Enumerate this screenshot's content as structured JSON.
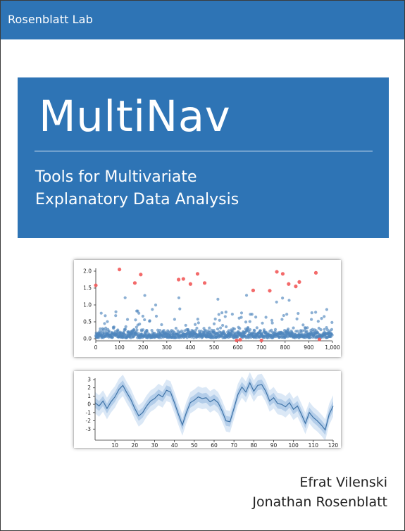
{
  "header": {
    "publisher": "Rosenblatt Lab"
  },
  "cover": {
    "title": "MultiNav",
    "subtitle_line1": "Tools for Multivariate",
    "subtitle_line2": "Explanatory Data Analysis"
  },
  "authors": [
    "Efrat Vilenski",
    "Jonathan Rosenblatt"
  ],
  "colors": {
    "brand_blue": "#2e74b5",
    "point_blue": "#4f86bd",
    "outlier_red": "#f25a5a",
    "band_outer": "#dbe8f6",
    "band_inner": "#b3cde9",
    "line": "#3f74a8"
  },
  "chart_data": [
    {
      "type": "scatter",
      "xlim": [
        0,
        1000
      ],
      "ylim": [
        0,
        2.0
      ],
      "xticks": [
        "0",
        "100",
        "200",
        "300",
        "400",
        "500",
        "600",
        "700",
        "800",
        "900",
        "1,000"
      ],
      "yticks": [
        "0.0",
        "0.5",
        "1.0",
        "1.5",
        "2.0"
      ],
      "series": [
        {
          "values_description": "",
          "points": "dense"
        },
        {
          "outliers": [
            [
              0,
              1.58
            ],
            [
              100,
              2.05
            ],
            [
              165,
              1.65
            ],
            [
              190,
              1.9
            ],
            [
              350,
              1.75
            ],
            [
              370,
              1.77
            ],
            [
              400,
              1.62
            ],
            [
              430,
              1.92
            ],
            [
              460,
              1.65
            ],
            [
              595,
              -0.05
            ],
            [
              610,
              -0.03
            ],
            [
              665,
              1.43
            ],
            [
              700,
              -0.05
            ],
            [
              735,
              1.42
            ],
            [
              765,
              1.98
            ],
            [
              790,
              1.92
            ],
            [
              815,
              1.62
            ],
            [
              845,
              1.55
            ],
            [
              860,
              1.68
            ],
            [
              930,
              1.95
            ],
            [
              945,
              -0.02
            ]
          ]
        }
      ]
    },
    {
      "type": "line",
      "xlim": [
        0,
        120
      ],
      "ylim": [
        -4,
        3
      ],
      "xticks": [
        "10",
        "20",
        "30",
        "40",
        "50",
        "60",
        "70",
        "80",
        "90",
        "100",
        "110",
        "120"
      ],
      "yticks": [
        "3",
        "2",
        "1",
        "0",
        "-1",
        "-2",
        "-3"
      ],
      "x": [
        0,
        2,
        4,
        6,
        8,
        10,
        12,
        14,
        16,
        18,
        20,
        22,
        24,
        26,
        28,
        30,
        32,
        34,
        36,
        38,
        40,
        42,
        44,
        46,
        48,
        50,
        52,
        54,
        56,
        58,
        60,
        62,
        64,
        66,
        68,
        70,
        72,
        74,
        76,
        78,
        80,
        82,
        84,
        86,
        88,
        90,
        92,
        94,
        96,
        98,
        100,
        102,
        104,
        106,
        108,
        110,
        112,
        114,
        116,
        118,
        120
      ],
      "y": [
        0.2,
        -0.2,
        0.4,
        -0.5,
        0.3,
        0.9,
        1.8,
        2.3,
        1.4,
        0.6,
        -0.5,
        -1.4,
        -1.0,
        -0.2,
        0.4,
        0.7,
        1.2,
        0.9,
        1.7,
        1.5,
        0.2,
        -1.2,
        -2.5,
        -1.0,
        0.2,
        0.5,
        0.9,
        0.7,
        0.8,
        0.3,
        0.6,
        0.2,
        -0.8,
        -2.0,
        -2.1,
        -0.5,
        1.2,
        2.1,
        1.5,
        2.6,
        1.6,
        2.3,
        2.4,
        1.6,
        0.4,
        0.8,
        0.1,
        0.0,
        -0.3,
        0.2,
        -0.6,
        -0.2,
        -1.2,
        -2.3,
        -1.0,
        -1.6,
        -2.0,
        -2.5,
        -3.1,
        -1.2,
        -0.2
      ],
      "band_inner": 0.6,
      "band_outer": 1.3
    }
  ]
}
